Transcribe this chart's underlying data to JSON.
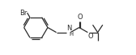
{
  "bg_color": "#ffffff",
  "line_color": "#2a2a2a",
  "line_width": 0.9,
  "font_size": 6.0,
  "fig_width": 1.68,
  "fig_height": 0.69,
  "dpi": 100,
  "xlim": [
    0,
    16.8
  ],
  "ylim": [
    -3.5,
    3.5
  ]
}
